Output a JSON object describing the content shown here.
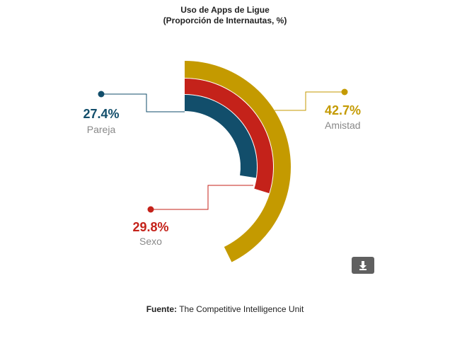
{
  "chart_data": {
    "type": "radial-bar",
    "title": "Uso de Apps de Ligue",
    "subtitle": "(Proporción de Internautas, %)",
    "max_value": 100,
    "series": [
      {
        "name": "Amistad",
        "value": 42.7,
        "value_label": "42.7%",
        "color": "#c49a00"
      },
      {
        "name": "Sexo",
        "value": 29.8,
        "value_label": "29.8%",
        "color": "#c4221a"
      },
      {
        "name": "Pareja",
        "value": 27.4,
        "value_label": "27.4%",
        "color": "#124e6b"
      }
    ]
  },
  "source": {
    "label": "Fuente:",
    "text": "The Competitive Intelligence Unit"
  },
  "download": {
    "icon": "download-icon"
  }
}
